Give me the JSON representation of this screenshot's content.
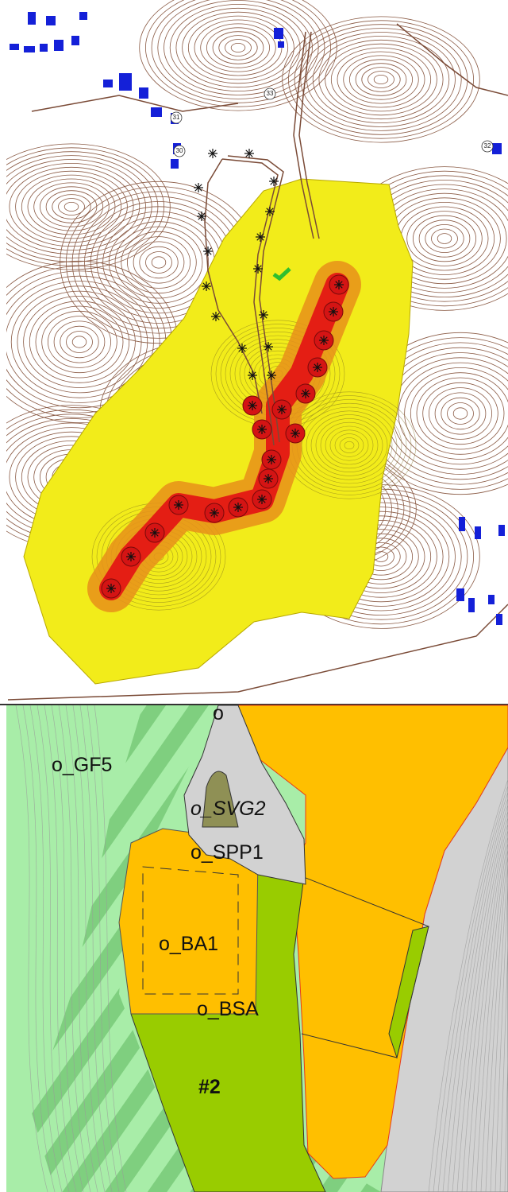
{
  "top_map": {
    "house_numbers": [
      "33",
      "31",
      "30",
      "32"
    ]
  },
  "bottom_map": {
    "labels": [
      "o",
      "o_GF5",
      "o_SVG2",
      "o_SPP1",
      "o_BA1",
      "o_BSA",
      "#2"
    ]
  }
}
